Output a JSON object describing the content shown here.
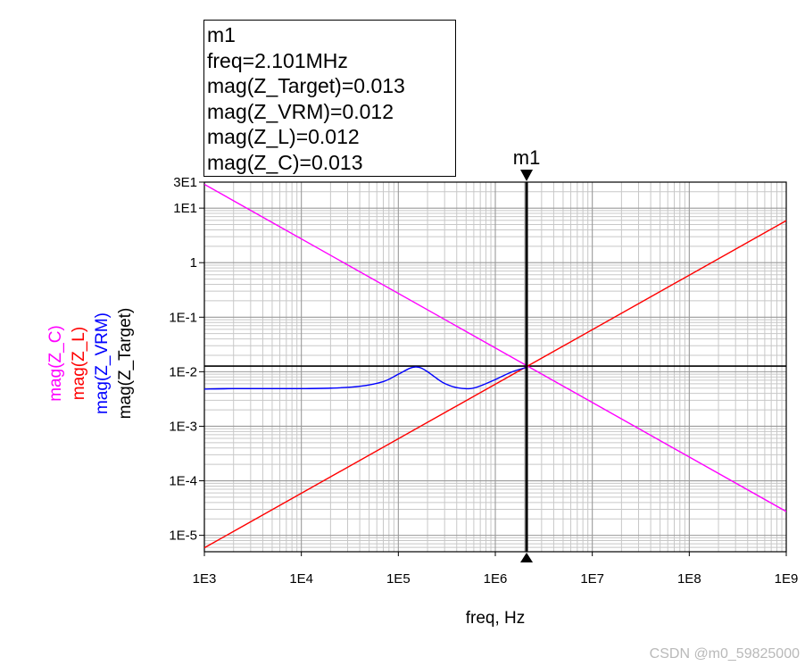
{
  "chart_data": {
    "type": "line",
    "x_scale": "log",
    "y_scale": "log",
    "xlim": [
      1000,
      1000000000
    ],
    "ylim": [
      5e-06,
      30
    ],
    "xlabel": "freq, Hz",
    "x_ticks": [
      "1E3",
      "1E4",
      "1E5",
      "1E6",
      "1E7",
      "1E8",
      "1E9"
    ],
    "y_ticks": [
      "3E1",
      "1E1",
      "1",
      "1E-1",
      "1E-2",
      "1E-3",
      "1E-4",
      "1E-5"
    ],
    "grid": true,
    "ylabels": [
      {
        "text": "mag(Z_C)",
        "color": "#ff00ff"
      },
      {
        "text": "mag(Z_L)",
        "color": "#ff0000"
      },
      {
        "text": "mag(Z_VRM)",
        "color": "#0000ff"
      },
      {
        "text": "mag(Z_Target)",
        "color": "#000000"
      }
    ],
    "series": [
      {
        "name": "mag(Z_C)",
        "color": "#ff00ff",
        "x": [
          1000,
          1000000000
        ],
        "y": [
          27.3,
          2.73e-05
        ]
      },
      {
        "name": "mag(Z_L)",
        "color": "#ff0000",
        "x": [
          1000,
          1000000000
        ],
        "y": [
          5.9e-06,
          5.9
        ]
      },
      {
        "name": "mag(Z_VRM)",
        "color": "#0000ff",
        "x": [
          1000,
          2000,
          5000,
          10000,
          20000,
          40000,
          70000,
          100000,
          130000,
          150000,
          170000,
          200000,
          250000,
          300000,
          400000,
          550000,
          700000,
          1000000,
          1500000,
          2101000
        ],
        "y": [
          0.0048,
          0.0049,
          0.0049,
          0.0049,
          0.005,
          0.0054,
          0.0066,
          0.009,
          0.0115,
          0.0122,
          0.0118,
          0.01,
          0.0075,
          0.0061,
          0.0051,
          0.0049,
          0.0055,
          0.0072,
          0.01,
          0.012
        ]
      },
      {
        "name": "mag(Z_Target)",
        "color": "#000000",
        "x": [
          1000,
          1000000000
        ],
        "y": [
          0.0127,
          0.0127
        ]
      }
    ],
    "marker": {
      "name": "m1",
      "x": 2101000,
      "lines": [
        "m1",
        "freq=2.101MHz",
        "mag(Z_Target)=0.013",
        "mag(Z_VRM)=0.012",
        "mag(Z_L)=0.012",
        "mag(Z_C)=0.013"
      ]
    }
  },
  "watermark": "CSDN @m0_59825000"
}
